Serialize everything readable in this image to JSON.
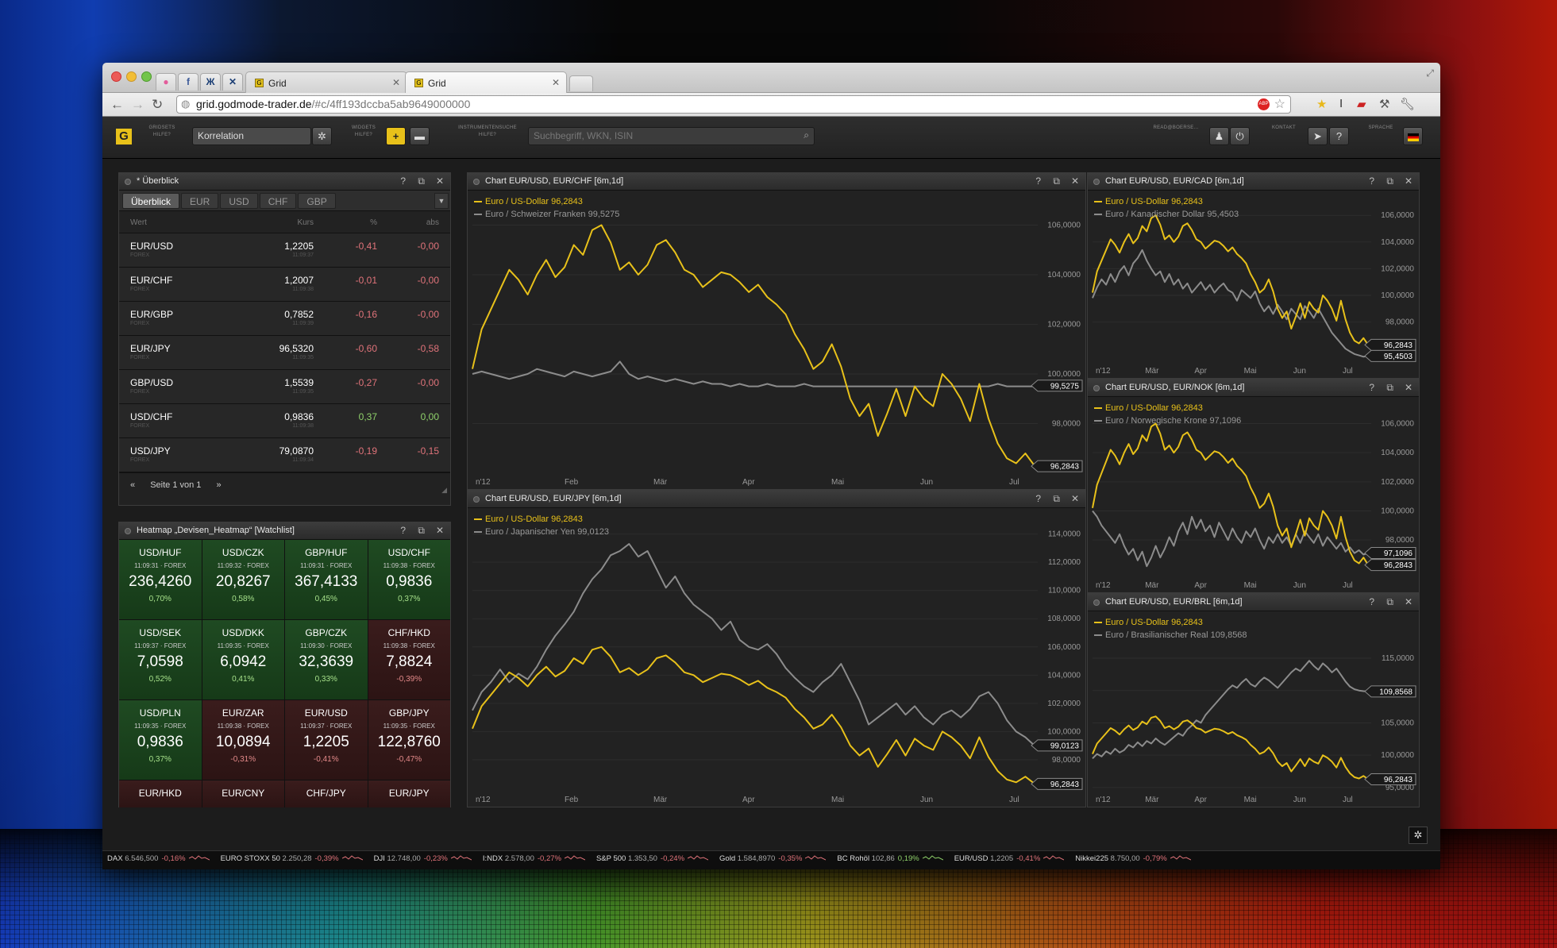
{
  "browser": {
    "tabs": [
      {
        "label": "Grid",
        "active": false
      },
      {
        "label": "Grid",
        "active": true
      }
    ],
    "url_host": "grid.godmode-trader.de",
    "url_path": "/#c/4ff193dccba5ab9649000000"
  },
  "header": {
    "logo": "G",
    "gridsets_label": "GRIDSETS HILFE?",
    "gridset_value": "Korrelation",
    "widgets_label": "WIDGETS HILFE?",
    "instrumentensuche_label": "INSTRUMENTENSUCHE HILFE?",
    "search_placeholder": "Suchbegriff, WKN, ISIN",
    "readboerse_label": "READ@BOERSE...",
    "kontakt_label": "KONTAKT",
    "sprache_label": "SPRACHE"
  },
  "overview": {
    "title": "* Überblick",
    "tabs": [
      "Überblick",
      "EUR",
      "USD",
      "CHF",
      "GBP"
    ],
    "columns": {
      "wert": "Wert",
      "kurs": "Kurs",
      "pct": "%",
      "abs": "abs"
    },
    "rows": [
      {
        "sym": "EUR/USD",
        "sub": "FOREX",
        "kurs": "1,2205",
        "time": "11:09:37",
        "pct": "-0,41",
        "abs": "-0,00"
      },
      {
        "sym": "EUR/CHF",
        "sub": "FOREX",
        "kurs": "1,2007",
        "time": "11:09:38",
        "pct": "-0,01",
        "abs": "-0,00"
      },
      {
        "sym": "EUR/GBP",
        "sub": "FOREX",
        "kurs": "0,7852",
        "time": "11:09:39",
        "pct": "-0,16",
        "abs": "-0,00"
      },
      {
        "sym": "EUR/JPY",
        "sub": "FOREX",
        "kurs": "96,5320",
        "time": "11:09:35",
        "pct": "-0,60",
        "abs": "-0,58"
      },
      {
        "sym": "GBP/USD",
        "sub": "FOREX",
        "kurs": "1,5539",
        "time": "11:09:35",
        "pct": "-0,27",
        "abs": "-0,00"
      },
      {
        "sym": "USD/CHF",
        "sub": "FOREX",
        "kurs": "0,9836",
        "time": "11:09:38",
        "pct": "0,37",
        "abs": "0,00"
      },
      {
        "sym": "USD/JPY",
        "sub": "FOREX",
        "kurs": "79,0870",
        "time": "11:09:34",
        "pct": "-0,19",
        "abs": "-0,15"
      }
    ],
    "pager": "Seite 1 von 1"
  },
  "heatmap": {
    "title": "Heatmap „Devisen_Heatmap“ [Watchlist]",
    "cells": [
      {
        "name": "USD/HUF",
        "time": "11:09:31 · FOREX",
        "value": "236,4260",
        "pct": "0,70%",
        "up": true
      },
      {
        "name": "USD/CZK",
        "time": "11:09:32 · FOREX",
        "value": "20,8267",
        "pct": "0,58%",
        "up": true
      },
      {
        "name": "GBP/HUF",
        "time": "11:09:31 · FOREX",
        "value": "367,4133",
        "pct": "0,45%",
        "up": true
      },
      {
        "name": "USD/CHF",
        "time": "11:09:38 · FOREX",
        "value": "0,9836",
        "pct": "0,37%",
        "up": true
      },
      {
        "name": "USD/SEK",
        "time": "11:09:37 · FOREX",
        "value": "7,0598",
        "pct": "0,52%",
        "up": true
      },
      {
        "name": "USD/DKK",
        "time": "11:09:35 · FOREX",
        "value": "6,0942",
        "pct": "0,41%",
        "up": true
      },
      {
        "name": "GBP/CZK",
        "time": "11:09:30 · FOREX",
        "value": "32,3639",
        "pct": "0,33%",
        "up": true
      },
      {
        "name": "CHF/HKD",
        "time": "11:09:38 · FOREX",
        "value": "7,8824",
        "pct": "-0,39%",
        "up": false
      },
      {
        "name": "USD/PLN",
        "time": "11:09:35 · FOREX",
        "value": "0,9836",
        "pct": "0,37%",
        "up": true
      },
      {
        "name": "EUR/ZAR",
        "time": "11:09:38 · FOREX",
        "value": "10,0894",
        "pct": "-0,31%",
        "up": false
      },
      {
        "name": "EUR/USD",
        "time": "11:09:37 · FOREX",
        "value": "1,2205",
        "pct": "-0,41%",
        "up": false
      },
      {
        "name": "GBP/JPY",
        "time": "11:09:35 · FOREX",
        "value": "122,8760",
        "pct": "-0,47%",
        "up": false
      },
      {
        "name": "EUR/HKD",
        "time": "",
        "value": "",
        "pct": "",
        "up": false
      },
      {
        "name": "EUR/CNY",
        "time": "",
        "value": "",
        "pct": "",
        "up": false
      },
      {
        "name": "CHF/JPY",
        "time": "",
        "value": "",
        "pct": "",
        "up": false
      },
      {
        "name": "EUR/JPY",
        "time": "",
        "value": "",
        "pct": "",
        "up": false
      }
    ]
  },
  "charts": [
    {
      "title": "Chart EUR/USD, EUR/CHF [6m,1d]",
      "legend1": "Euro / US-Dollar 96,2843",
      "legend2": "Euro / Schweizer Franken 99,5275",
      "ylabels": [
        "106,0000",
        "104,0000",
        "102,0000",
        "100,0000",
        "98,0000"
      ],
      "yvals": [
        106,
        104,
        102,
        100,
        98
      ],
      "ylim": [
        96,
        107.2
      ],
      "xlabels": [
        "n'12",
        "Feb",
        "Mär",
        "Apr",
        "Mai",
        "Jun",
        "Jul"
      ],
      "tag1": "96,2843",
      "tag1v": 96.2843,
      "tag2": "99,5275",
      "tag2v": 99.5275,
      "series1": [
        100.2,
        101.8,
        102.6,
        103.4,
        104.2,
        103.8,
        103.2,
        104.0,
        104.6,
        103.9,
        104.3,
        105.2,
        104.8,
        105.8,
        106.0,
        105.3,
        104.2,
        104.5,
        104.0,
        104.4,
        105.2,
        105.4,
        104.9,
        104.2,
        104.0,
        103.5,
        103.8,
        104.1,
        104.0,
        103.7,
        103.3,
        103.6,
        103.1,
        102.8,
        102.4,
        101.6,
        101.0,
        100.2,
        100.5,
        101.2,
        100.3,
        99.0,
        98.3,
        98.8,
        97.5,
        98.4,
        99.4,
        98.3,
        99.5,
        99.0,
        98.7,
        100.0,
        99.6,
        99.0,
        98.1,
        99.6,
        98.2,
        97.2,
        96.6,
        96.4,
        96.8,
        96.3
      ],
      "series2": [
        100.0,
        100.1,
        100.0,
        99.9,
        99.8,
        99.9,
        100.0,
        100.2,
        100.1,
        100.0,
        99.9,
        100.1,
        100.0,
        99.9,
        100.0,
        100.1,
        100.5,
        100.0,
        99.8,
        99.9,
        99.8,
        99.7,
        99.8,
        99.7,
        99.6,
        99.7,
        99.6,
        99.6,
        99.5,
        99.6,
        99.5,
        99.5,
        99.6,
        99.5,
        99.5,
        99.5,
        99.6,
        99.5,
        99.5,
        99.5,
        99.5,
        99.5,
        99.5,
        99.5,
        99.5,
        99.5,
        99.5,
        99.5,
        99.5,
        99.5,
        99.5,
        99.5,
        99.5,
        99.5,
        99.5,
        99.5,
        99.5,
        99.6,
        99.5,
        99.5,
        99.5,
        99.5
      ]
    },
    {
      "title": "Chart EUR/USD, EUR/JPY [6m,1d]",
      "legend1": "Euro / US-Dollar 96,2843",
      "legend2": "Euro / Japanischer Yen 99,0123",
      "ylabels": [
        "114,0000",
        "112,0000",
        "110,0000",
        "108,0000",
        "106,0000",
        "104,0000",
        "102,0000",
        "100,0000",
        "98,0000"
      ],
      "yvals": [
        114,
        112,
        110,
        108,
        106,
        104,
        102,
        100,
        98
      ],
      "ylim": [
        95.8,
        115.5
      ],
      "xlabels": [
        "n'12",
        "Feb",
        "Mär",
        "Apr",
        "Mai",
        "Jun",
        "Jul"
      ],
      "tag1": "96,2843",
      "tag1v": 96.2843,
      "tag2": "99,0123",
      "tag2v": 99.0123,
      "series1": [
        100.2,
        101.8,
        102.6,
        103.4,
        104.2,
        103.8,
        103.2,
        104.0,
        104.6,
        103.9,
        104.3,
        105.2,
        104.8,
        105.8,
        106.0,
        105.3,
        104.2,
        104.5,
        104.0,
        104.4,
        105.2,
        105.4,
        104.9,
        104.2,
        104.0,
        103.5,
        103.8,
        104.1,
        104.0,
        103.7,
        103.3,
        103.6,
        103.1,
        102.8,
        102.4,
        101.6,
        101.0,
        100.2,
        100.5,
        101.2,
        100.3,
        99.0,
        98.3,
        98.8,
        97.5,
        98.4,
        99.4,
        98.3,
        99.5,
        99.0,
        98.7,
        100.0,
        99.6,
        99.0,
        98.1,
        99.6,
        98.2,
        97.2,
        96.6,
        96.4,
        96.8,
        96.3
      ],
      "series2": [
        101.5,
        102.8,
        103.5,
        104.4,
        103.5,
        104.1,
        103.7,
        104.6,
        105.8,
        106.8,
        107.6,
        108.5,
        109.8,
        110.8,
        111.5,
        112.5,
        112.8,
        113.3,
        112.4,
        112.8,
        111.5,
        110.2,
        111.0,
        109.8,
        109.0,
        108.5,
        108.0,
        107.2,
        107.8,
        106.5,
        106.0,
        105.8,
        106.2,
        105.5,
        104.5,
        103.8,
        103.2,
        102.8,
        103.5,
        104.0,
        104.8,
        103.5,
        102.2,
        100.5,
        101.0,
        101.5,
        102.0,
        101.2,
        101.8,
        101.0,
        100.5,
        101.2,
        101.5,
        101.0,
        101.6,
        102.5,
        102.8,
        102.0,
        100.8,
        100.0,
        99.6,
        99.0
      ]
    },
    {
      "title": "Chart EUR/USD, EUR/CAD [6m,1d]",
      "legend1": "Euro / US-Dollar 96,2843",
      "legend2": "Euro / Kanadischer Dollar 95,4503",
      "ylabels": [
        "106,0000",
        "104,0000",
        "102,0000",
        "100,0000",
        "98,0000"
      ],
      "yvals": [
        106,
        104,
        102,
        100,
        98
      ],
      "ylim": [
        95,
        107.5
      ],
      "xlabels": [
        "n'12",
        "Mär",
        "Apr",
        "Mai",
        "Jun",
        "Jul"
      ],
      "tag1": "96,2843",
      "tag1v": 96.2843,
      "tag2": "95,4503",
      "tag2v": 95.4503,
      "series1": [
        100.2,
        101.8,
        102.6,
        103.4,
        104.2,
        103.8,
        103.2,
        104.0,
        104.6,
        103.9,
        104.3,
        105.2,
        104.8,
        105.8,
        106.0,
        105.3,
        104.2,
        104.5,
        104.0,
        104.4,
        105.2,
        105.4,
        104.9,
        104.2,
        104.0,
        103.5,
        103.8,
        104.1,
        104.0,
        103.7,
        103.3,
        103.6,
        103.1,
        102.8,
        102.4,
        101.6,
        101.0,
        100.2,
        100.5,
        101.2,
        100.3,
        99.0,
        98.3,
        98.8,
        97.5,
        98.4,
        99.4,
        98.3,
        99.5,
        99.0,
        98.7,
        100.0,
        99.6,
        99.0,
        98.1,
        99.6,
        98.2,
        97.2,
        96.6,
        96.4,
        96.8,
        96.3
      ],
      "series2": [
        99.8,
        100.6,
        101.2,
        100.8,
        101.6,
        101.0,
        101.8,
        102.2,
        101.5,
        102.4,
        102.8,
        103.4,
        102.6,
        102.0,
        101.5,
        101.8,
        101.0,
        101.6,
        100.8,
        101.2,
        100.5,
        100.9,
        100.2,
        100.6,
        101.0,
        100.4,
        100.8,
        100.2,
        100.6,
        100.9,
        100.4,
        100.2,
        99.6,
        100.4,
        100.1,
        99.8,
        100.3,
        99.4,
        98.8,
        99.2,
        98.6,
        99.3,
        98.8,
        98.2,
        99.0,
        98.6,
        98.2,
        99.2,
        98.8,
        98.3,
        99.0,
        98.4,
        97.8,
        97.2,
        96.8,
        96.4,
        96.0,
        95.8,
        95.6,
        95.5,
        95.4,
        95.45
      ]
    },
    {
      "title": "Chart EUR/USD, EUR/NOK [6m,1d]",
      "legend1": "Euro / US-Dollar 96,2843",
      "legend2": "Euro / Norwegische Krone 97,1096",
      "ylabels": [
        "106,0000",
        "104,0000",
        "102,0000",
        "100,0000",
        "98,0000"
      ],
      "yvals": [
        106,
        104,
        102,
        100,
        98
      ],
      "ylim": [
        95.5,
        107.5
      ],
      "xlabels": [
        "n'12",
        "Mär",
        "Apr",
        "Mai",
        "Jun",
        "Jul"
      ],
      "tag1": "97,1096",
      "tag1v": 97.1096,
      "tag2": "96,2843",
      "tag2v": 96.2843,
      "series1": [
        100.2,
        101.8,
        102.6,
        103.4,
        104.2,
        103.8,
        103.2,
        104.0,
        104.6,
        103.9,
        104.3,
        105.2,
        104.8,
        105.8,
        106.0,
        105.3,
        104.2,
        104.5,
        104.0,
        104.4,
        105.2,
        105.4,
        104.9,
        104.2,
        104.0,
        103.5,
        103.8,
        104.1,
        104.0,
        103.7,
        103.3,
        103.6,
        103.1,
        102.8,
        102.4,
        101.6,
        101.0,
        100.2,
        100.5,
        101.2,
        100.3,
        99.0,
        98.3,
        98.8,
        97.5,
        98.4,
        99.4,
        98.3,
        99.5,
        99.0,
        98.7,
        100.0,
        99.6,
        99.0,
        98.1,
        99.6,
        98.2,
        97.2,
        96.6,
        96.4,
        96.8,
        96.3
      ],
      "series2": [
        100.0,
        99.6,
        99.0,
        98.6,
        98.2,
        97.8,
        98.4,
        97.6,
        97.0,
        97.4,
        96.6,
        97.2,
        96.2,
        96.8,
        97.6,
        96.8,
        97.4,
        98.2,
        97.6,
        98.6,
        99.2,
        98.4,
        99.6,
        98.8,
        99.4,
        98.6,
        99.0,
        98.2,
        99.2,
        98.6,
        98.0,
        98.8,
        98.2,
        97.8,
        98.6,
        98.2,
        98.8,
        98.0,
        97.4,
        98.2,
        97.8,
        98.4,
        97.8,
        98.2,
        97.6,
        98.4,
        97.8,
        98.6,
        98.2,
        97.8,
        98.4,
        97.6,
        98.2,
        97.8,
        97.4,
        97.8,
        97.2,
        97.5,
        97.1,
        97.3,
        97.0,
        97.11
      ]
    },
    {
      "title": "Chart EUR/USD, EUR/BRL [6m,1d]",
      "legend1": "Euro / US-Dollar 96,2843",
      "legend2": "Euro / Brasilianischer Real 109,8568",
      "ylabels": [
        "115,0000",
        "110,0000",
        "105,0000",
        "100,0000",
        "95,0000"
      ],
      "yvals": [
        115,
        110,
        105,
        100,
        95
      ],
      "ylim": [
        94.5,
        121.5
      ],
      "xlabels": [
        "n'12",
        "Mär",
        "Apr",
        "Mai",
        "Jun",
        "Jul"
      ],
      "tag1": "109,8568",
      "tag1v": 109.8568,
      "tag2": "96,2843",
      "tag2v": 96.2843,
      "series1": [
        100.2,
        101.8,
        102.6,
        103.4,
        104.2,
        103.8,
        103.2,
        104.0,
        104.6,
        103.9,
        104.3,
        105.2,
        104.8,
        105.8,
        106.0,
        105.3,
        104.2,
        104.5,
        104.0,
        104.4,
        105.2,
        105.4,
        104.9,
        104.2,
        104.0,
        103.5,
        103.8,
        104.1,
        104.0,
        103.7,
        103.3,
        103.6,
        103.1,
        102.8,
        102.4,
        101.6,
        101.0,
        100.2,
        100.5,
        101.2,
        100.3,
        99.0,
        98.3,
        98.8,
        97.5,
        98.4,
        99.4,
        98.3,
        99.5,
        99.0,
        98.7,
        100.0,
        99.6,
        99.0,
        98.1,
        99.6,
        98.2,
        97.2,
        96.6,
        96.4,
        96.8,
        96.3
      ],
      "series2": [
        99.5,
        100.2,
        99.8,
        100.6,
        100.2,
        101.0,
        100.4,
        100.8,
        101.6,
        101.2,
        102.0,
        101.4,
        102.2,
        101.8,
        102.6,
        102.0,
        101.6,
        102.2,
        102.8,
        103.4,
        103.0,
        104.0,
        104.6,
        105.4,
        105.0,
        106.2,
        107.0,
        107.8,
        108.6,
        109.4,
        110.2,
        110.8,
        110.4,
        111.2,
        111.8,
        111.0,
        110.6,
        111.4,
        112.0,
        111.6,
        111.0,
        110.4,
        111.2,
        112.0,
        112.8,
        113.4,
        113.0,
        113.8,
        114.6,
        113.8,
        113.2,
        114.2,
        113.6,
        112.8,
        113.4,
        112.4,
        111.4,
        110.6,
        110.2,
        110.0,
        109.9,
        109.86
      ]
    }
  ],
  "ticker": [
    {
      "name": "DAX",
      "value": "6.546,500",
      "pct": "-0,16%",
      "up": false
    },
    {
      "name": "EURO STOXX 50",
      "value": "2.250,28",
      "pct": "-0,39%",
      "up": false
    },
    {
      "name": "DJI",
      "value": "12.748,00",
      "pct": "-0,23%",
      "up": false
    },
    {
      "name": "I:NDX",
      "value": "2.578,00",
      "pct": "-0,27%",
      "up": false
    },
    {
      "name": "S&P 500",
      "value": "1.353,50",
      "pct": "-0,24%",
      "up": false
    },
    {
      "name": "Gold",
      "value": "1.584,8970",
      "pct": "-0,35%",
      "up": false
    },
    {
      "name": "BC Rohöl",
      "value": "102,86",
      "pct": "0,19%",
      "up": true
    },
    {
      "name": "EUR/USD",
      "value": "1,2205",
      "pct": "-0,41%",
      "up": false
    },
    {
      "name": "Nikkei225",
      "value": "8.750,00",
      "pct": "-0,79%",
      "up": false
    }
  ],
  "colors": {
    "accent": "#e8c11a",
    "series2": "#8c8c8c",
    "neg": "#e0737a",
    "pos": "#8fd16a"
  }
}
